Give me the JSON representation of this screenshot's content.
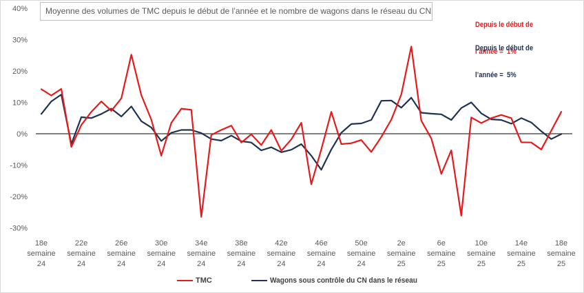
{
  "chart_data": {
    "type": "line",
    "title": "Moyenne des volumes de TMC depuis le début de l’année et le nombre de wagons dans le réseau du CN",
    "ylim": [
      -30,
      40
    ],
    "grid": false,
    "zero_line": true,
    "legend_position": "bottom",
    "y_ticks": [
      {
        "value": 40,
        "label": "40%"
      },
      {
        "value": 30,
        "label": "30%"
      },
      {
        "value": 20,
        "label": "20%"
      },
      {
        "value": 10,
        "label": "10%"
      },
      {
        "value": 0,
        "label": "0%"
      },
      {
        "value": -10,
        "label": "-10%"
      },
      {
        "value": -20,
        "label": "-20%"
      },
      {
        "value": -30,
        "label": "-30%"
      }
    ],
    "x_ticks": [
      {
        "lines": [
          "18e",
          "semaine",
          "24"
        ]
      },
      {
        "lines": [
          "22e",
          "semaine",
          "24"
        ]
      },
      {
        "lines": [
          "26e",
          "semaine",
          "24"
        ]
      },
      {
        "lines": [
          "30e",
          "semaine",
          "24"
        ]
      },
      {
        "lines": [
          "34e",
          "semaine",
          "24"
        ]
      },
      {
        "lines": [
          "38e",
          "semaine",
          "24"
        ]
      },
      {
        "lines": [
          "42e",
          "semaine",
          "24"
        ]
      },
      {
        "lines": [
          "46e",
          "semaine",
          "24"
        ]
      },
      {
        "lines": [
          "50e",
          "semaine",
          "24"
        ]
      },
      {
        "lines": [
          "2e",
          "semaine",
          "25"
        ]
      },
      {
        "lines": [
          "6e",
          "semaine",
          "25"
        ]
      },
      {
        "lines": [
          "10e",
          "semaine",
          "25"
        ]
      },
      {
        "lines": [
          "14e",
          "semaine",
          "25"
        ]
      },
      {
        "lines": [
          "18e",
          "semaine",
          "25"
        ]
      }
    ],
    "series": [
      {
        "name": "TMC",
        "color": "#e8191a",
        "values": [
          14.2,
          12.2,
          14.3,
          -4.2,
          2.8,
          7.0,
          10.3,
          7.3,
          11.3,
          25.2,
          12.3,
          4.5,
          -7.0,
          3.5,
          8.0,
          7.6,
          -26.5,
          -0.4,
          1.2,
          2.6,
          -2.8,
          -0.2,
          -3.6,
          1.2,
          -5.4,
          -1.8,
          3.5,
          -16.1,
          -5.0,
          7.0,
          -3.3,
          -3.0,
          -2.0,
          -5.8,
          -1.0,
          4.5,
          12.5,
          27.8,
          4.2,
          -1.5,
          -12.8,
          -5.3,
          -26.1,
          5.2,
          3.4,
          5.0,
          6.0,
          5.0,
          -2.7,
          -2.8,
          -5.0,
          1.0,
          7.0
        ]
      },
      {
        "name": "Wagons sous contrôle du CN dans le réseau",
        "color": "#1f3251",
        "values": [
          6.3,
          10.3,
          12.5,
          -3.3,
          5.3,
          5.0,
          6.3,
          8.0,
          5.5,
          8.7,
          4.0,
          2.0,
          -2.3,
          0.3,
          1.2,
          1.2,
          0.2,
          -1.7,
          -2.2,
          -0.6,
          -2.4,
          -2.8,
          -5.3,
          -4.3,
          -5.9,
          -5.1,
          -3.3,
          -7.0,
          -11.5,
          -5.0,
          0.3,
          3.1,
          3.3,
          4.4,
          10.5,
          10.6,
          8.3,
          11.5,
          6.7,
          6.4,
          6.2,
          4.4,
          8.2,
          10.0,
          6.5,
          4.6,
          4.4,
          3.2,
          5.0,
          3.6,
          0.8,
          -1.7,
          -0.1
        ]
      }
    ],
    "annotations": [
      {
        "lines": [
          "Depuis le début de",
          "l’année =  1%"
        ],
        "color": "#e8191a"
      },
      {
        "lines": [
          "Depuis le début de",
          "l’année =  5%"
        ],
        "color": "#1f3251"
      }
    ]
  }
}
